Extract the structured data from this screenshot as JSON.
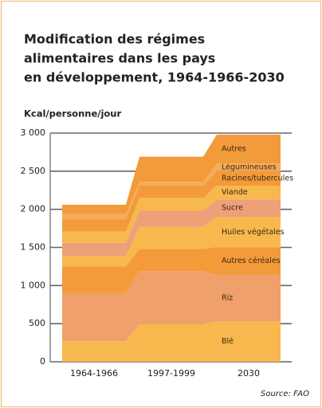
{
  "chart_data": {
    "type": "stacked_step",
    "title": [
      "Modification des régimes",
      "alimentaires dans les pays",
      "en développement, 1964-1966-2030"
    ],
    "y_label": "Kcal/personne/jour",
    "source": "Source: FAO",
    "categories": [
      "1964-1966",
      "1997-1999",
      "2030"
    ],
    "ylim": [
      0,
      3000
    ],
    "yticks": [
      0,
      {
        "value": 500,
        "label": "500"
      },
      {
        "value": 1000,
        "label": "1 000"
      },
      {
        "value": 1500,
        "label": "1 500"
      },
      {
        "value": 2000,
        "label": "2 000"
      },
      {
        "value": 2500,
        "label": "2 500"
      },
      {
        "value": 3000,
        "label": "3 000"
      }
    ],
    "grid": true,
    "series": [
      {
        "name": "Blé",
        "color": "#f7b84e",
        "values": [
          270,
          500,
          530
        ]
      },
      {
        "name": "Riz",
        "color": "#f0a06a",
        "values": [
          630,
          690,
          610
        ]
      },
      {
        "name": "Autres céréales",
        "color": "#f39a3a",
        "values": [
          350,
          290,
          360
        ]
      },
      {
        "name": "Huiles végétales",
        "color": "#f7b84e",
        "values": [
          140,
          290,
          400
        ]
      },
      {
        "name": "Sucre",
        "color": "#eea078",
        "values": [
          170,
          210,
          230
        ]
      },
      {
        "name": "Viande",
        "color": "#f7b84e",
        "values": [
          150,
          170,
          180
        ]
      },
      {
        "name": "Racines/tubercules",
        "color": "#f39a3a",
        "values": [
          160,
          160,
          190
        ]
      },
      {
        "name": "Légumineuses",
        "color": "#f5ac5a",
        "values": [
          70,
          50,
          100
        ]
      },
      {
        "name": "Autres",
        "color": "#f39a3a",
        "values": [
          120,
          330,
          380
        ]
      }
    ]
  }
}
